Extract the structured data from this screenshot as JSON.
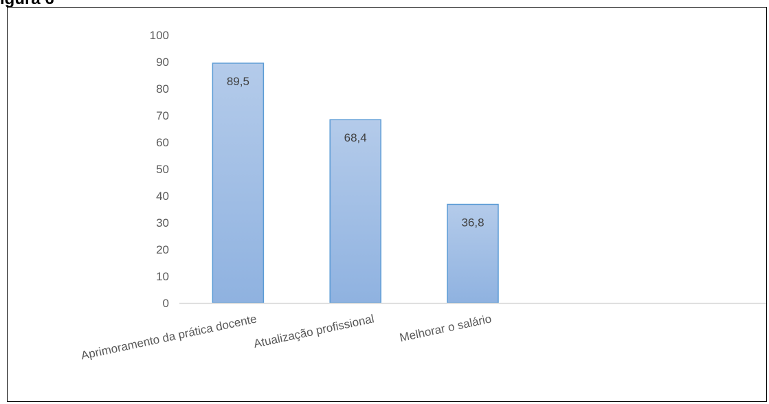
{
  "heading_fragment": "ígura 6",
  "chart_data": {
    "type": "bar",
    "categories": [
      "Aprimoramento da prática docente",
      "Atualização profissional",
      "Melhorar o salário"
    ],
    "values": [
      89.5,
      68.4,
      36.8
    ],
    "data_labels": [
      "89,5",
      "68,4",
      "36,8"
    ],
    "ylim": [
      0,
      100
    ],
    "yticks": [
      "0",
      "10",
      "20",
      "30",
      "40",
      "50",
      "60",
      "70",
      "80",
      "90",
      "100"
    ],
    "category_slots": 5,
    "grid": false,
    "legend": "none",
    "title": "",
    "xlabel": "",
    "ylabel": "",
    "colors": {
      "bar_top": "#b4cbea",
      "bar_bottom": "#8fb2e0",
      "bar_edge": "#5b9bd5",
      "axis": "#d9d9d9",
      "text": "#595959"
    }
  }
}
